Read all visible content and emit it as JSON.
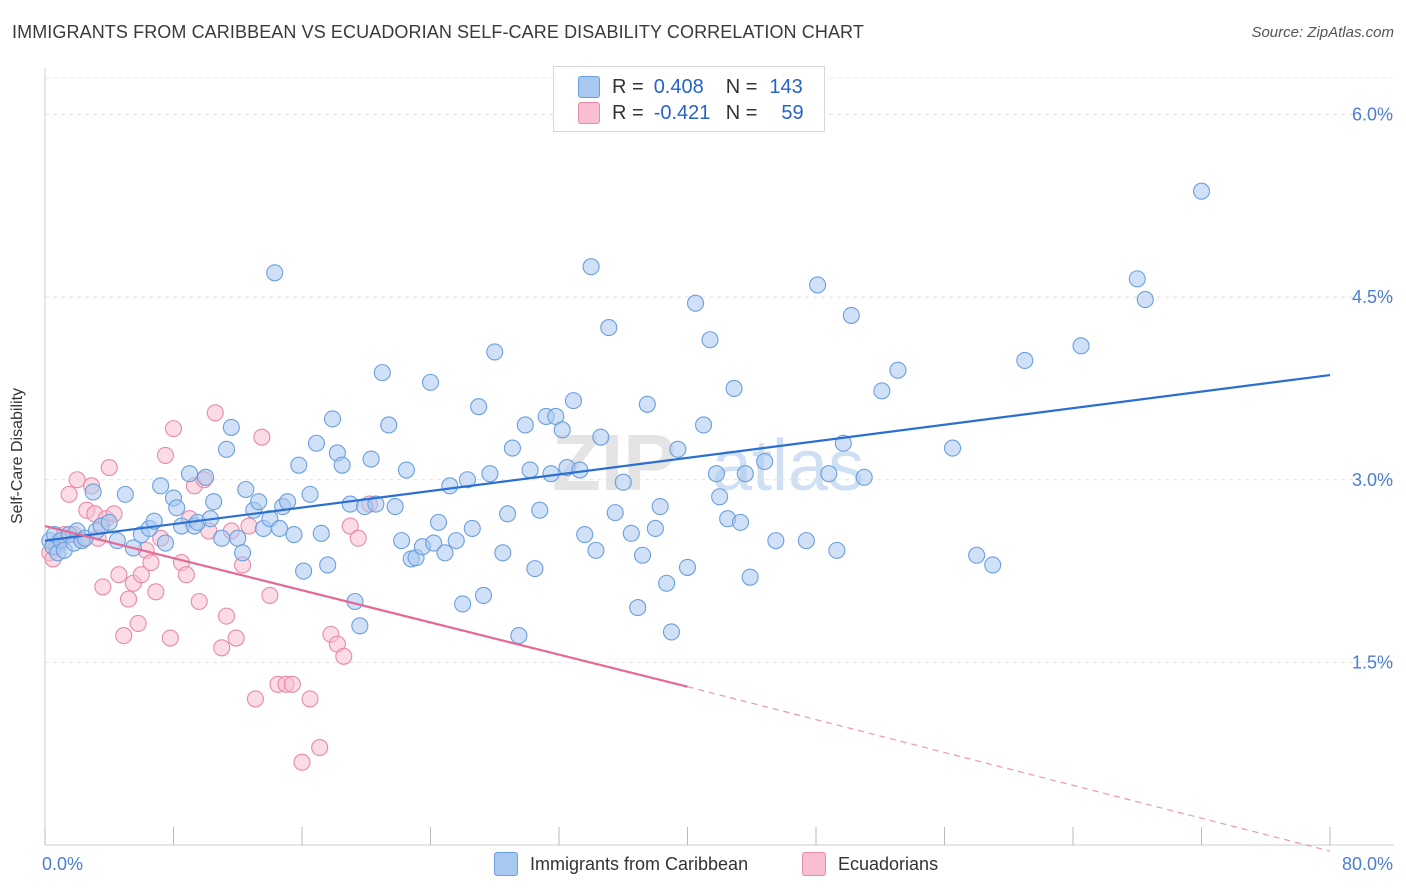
{
  "header": {
    "title": "IMMIGRANTS FROM CARIBBEAN VS ECUADORIAN SELF-CARE DISABILITY CORRELATION CHART",
    "source": "Source: ZipAtlas.com"
  },
  "legend": {
    "series": [
      {
        "r_label": "R =",
        "r_value": "0.408",
        "n_label": "N =",
        "n_value": "143",
        "color": "#a9c8f0",
        "border": "#6a9fde"
      },
      {
        "r_label": "R =",
        "r_value": "-0.421",
        "n_label": "N =",
        "n_value": "59",
        "color": "#f7bfd0",
        "border": "#e88aa8"
      }
    ]
  },
  "bottom_legend": [
    "Immigrants from Caribbean",
    "Ecuadorians"
  ],
  "watermark": {
    "zip": "ZIP",
    "atlas": "atlas"
  },
  "chart_data": {
    "type": "scatter",
    "ylabel": "Self-Care Disability",
    "xlim": [
      0,
      80
    ],
    "ylim": [
      0,
      6.3
    ],
    "x_tick_labels": [
      "0.0%",
      "80.0%"
    ],
    "y_ticks": [
      1.5,
      3.0,
      4.5,
      6.0
    ],
    "y_tick_labels": [
      "1.5%",
      "3.0%",
      "4.5%",
      "6.0%"
    ],
    "colors": {
      "blue": "#2a6fd1",
      "pink": "#e26a96",
      "blue_fill": "#a9c8f0",
      "pink_fill": "#f7bfd0"
    },
    "series": [
      {
        "name": "Immigrants from Caribbean",
        "trend": {
          "x0": 0,
          "y0": 2.5,
          "x1": 80,
          "y1": 3.86
        },
        "points": [
          [
            0.3,
            2.5
          ],
          [
            0.5,
            2.45
          ],
          [
            0.6,
            2.55
          ],
          [
            0.8,
            2.4
          ],
          [
            1.0,
            2.5
          ],
          [
            1.2,
            2.42
          ],
          [
            1.5,
            2.55
          ],
          [
            1.8,
            2.48
          ],
          [
            2.0,
            2.58
          ],
          [
            2.3,
            2.5
          ],
          [
            2.5,
            2.52
          ],
          [
            3.0,
            2.9
          ],
          [
            3.2,
            2.58
          ],
          [
            3.5,
            2.62
          ],
          [
            4.0,
            2.65
          ],
          [
            4.5,
            2.5
          ],
          [
            5.0,
            2.88
          ],
          [
            5.5,
            2.44
          ],
          [
            6.0,
            2.55
          ],
          [
            6.5,
            2.6
          ],
          [
            6.8,
            2.66
          ],
          [
            7.2,
            2.95
          ],
          [
            7.5,
            2.48
          ],
          [
            8.0,
            2.85
          ],
          [
            8.2,
            2.77
          ],
          [
            8.5,
            2.62
          ],
          [
            9.0,
            3.05
          ],
          [
            9.3,
            2.62
          ],
          [
            9.5,
            2.65
          ],
          [
            10.0,
            3.02
          ],
          [
            10.3,
            2.68
          ],
          [
            10.5,
            2.82
          ],
          [
            11.0,
            2.52
          ],
          [
            11.3,
            3.25
          ],
          [
            11.6,
            3.43
          ],
          [
            12.0,
            2.52
          ],
          [
            12.3,
            2.4
          ],
          [
            12.5,
            2.92
          ],
          [
            13.0,
            2.75
          ],
          [
            13.3,
            2.82
          ],
          [
            13.6,
            2.6
          ],
          [
            14.0,
            2.68
          ],
          [
            14.3,
            4.7
          ],
          [
            14.6,
            2.6
          ],
          [
            14.8,
            2.78
          ],
          [
            15.1,
            2.82
          ],
          [
            15.5,
            2.55
          ],
          [
            15.8,
            3.12
          ],
          [
            16.1,
            2.25
          ],
          [
            16.5,
            2.88
          ],
          [
            16.9,
            3.3
          ],
          [
            17.2,
            2.56
          ],
          [
            17.6,
            2.3
          ],
          [
            17.9,
            3.5
          ],
          [
            18.2,
            3.22
          ],
          [
            18.5,
            3.12
          ],
          [
            19.0,
            2.8
          ],
          [
            19.3,
            2.0
          ],
          [
            19.6,
            1.8
          ],
          [
            19.9,
            2.78
          ],
          [
            20.3,
            3.17
          ],
          [
            20.6,
            2.8
          ],
          [
            21.0,
            3.88
          ],
          [
            21.4,
            3.45
          ],
          [
            21.8,
            2.78
          ],
          [
            22.2,
            2.5
          ],
          [
            22.5,
            3.08
          ],
          [
            22.8,
            2.35
          ],
          [
            23.1,
            2.36
          ],
          [
            23.5,
            2.45
          ],
          [
            24.0,
            3.8
          ],
          [
            24.2,
            2.48
          ],
          [
            24.5,
            2.65
          ],
          [
            24.9,
            2.4
          ],
          [
            25.2,
            2.95
          ],
          [
            25.6,
            2.5
          ],
          [
            26.0,
            1.98
          ],
          [
            26.3,
            3.0
          ],
          [
            26.6,
            2.6
          ],
          [
            27.0,
            3.6
          ],
          [
            27.3,
            2.05
          ],
          [
            27.7,
            3.05
          ],
          [
            28.0,
            4.05
          ],
          [
            28.5,
            2.4
          ],
          [
            28.8,
            2.72
          ],
          [
            29.1,
            3.26
          ],
          [
            29.5,
            1.72
          ],
          [
            29.9,
            3.45
          ],
          [
            30.2,
            3.08
          ],
          [
            30.5,
            2.27
          ],
          [
            30.8,
            2.75
          ],
          [
            31.2,
            3.52
          ],
          [
            31.5,
            3.05
          ],
          [
            31.8,
            3.52
          ],
          [
            32.2,
            3.41
          ],
          [
            32.5,
            3.1
          ],
          [
            32.9,
            3.65
          ],
          [
            33.3,
            3.08
          ],
          [
            33.6,
            2.55
          ],
          [
            34.0,
            4.75
          ],
          [
            34.3,
            2.42
          ],
          [
            34.6,
            3.35
          ],
          [
            35.1,
            4.25
          ],
          [
            35.5,
            2.73
          ],
          [
            36.0,
            2.98
          ],
          [
            36.5,
            2.56
          ],
          [
            36.9,
            1.95
          ],
          [
            37.2,
            2.38
          ],
          [
            37.5,
            3.62
          ],
          [
            38.0,
            2.6
          ],
          [
            38.3,
            2.78
          ],
          [
            38.7,
            2.15
          ],
          [
            39.0,
            1.75
          ],
          [
            39.4,
            3.25
          ],
          [
            40.0,
            2.28
          ],
          [
            40.5,
            4.45
          ],
          [
            41.0,
            3.45
          ],
          [
            41.4,
            4.15
          ],
          [
            41.8,
            3.05
          ],
          [
            42.0,
            2.86
          ],
          [
            42.5,
            2.68
          ],
          [
            42.9,
            3.75
          ],
          [
            43.3,
            2.65
          ],
          [
            43.6,
            3.05
          ],
          [
            43.9,
            2.2
          ],
          [
            44.8,
            3.15
          ],
          [
            45.5,
            2.5
          ],
          [
            47.4,
            2.5
          ],
          [
            48.1,
            4.6
          ],
          [
            48.8,
            3.05
          ],
          [
            49.3,
            2.42
          ],
          [
            49.7,
            3.3
          ],
          [
            50.2,
            4.35
          ],
          [
            51.0,
            3.02
          ],
          [
            52.1,
            3.73
          ],
          [
            53.1,
            3.9
          ],
          [
            56.5,
            3.26
          ],
          [
            58.0,
            2.38
          ],
          [
            59.0,
            2.3
          ],
          [
            61.0,
            3.98
          ],
          [
            64.5,
            4.1
          ],
          [
            68.0,
            4.65
          ],
          [
            68.5,
            4.48
          ],
          [
            72.0,
            5.37
          ]
        ]
      },
      {
        "name": "Ecuadorians",
        "trend": {
          "x0": 0,
          "y0": 2.62,
          "x1": 40,
          "y1": 1.3
        },
        "trend_ext": {
          "x0": 40,
          "y0": 1.3,
          "x1": 80,
          "y1": -0.05
        },
        "points": [
          [
            0.3,
            2.4
          ],
          [
            0.5,
            2.35
          ],
          [
            0.7,
            2.45
          ],
          [
            0.9,
            2.5
          ],
          [
            1.2,
            2.55
          ],
          [
            1.5,
            2.88
          ],
          [
            1.8,
            2.55
          ],
          [
            2.0,
            3.0
          ],
          [
            2.3,
            2.5
          ],
          [
            2.6,
            2.75
          ],
          [
            2.9,
            2.95
          ],
          [
            3.1,
            2.72
          ],
          [
            3.3,
            2.52
          ],
          [
            3.6,
            2.12
          ],
          [
            3.8,
            2.68
          ],
          [
            4.0,
            3.1
          ],
          [
            4.3,
            2.72
          ],
          [
            4.6,
            2.22
          ],
          [
            4.9,
            1.72
          ],
          [
            5.2,
            2.02
          ],
          [
            5.5,
            2.15
          ],
          [
            5.8,
            1.82
          ],
          [
            6.0,
            2.22
          ],
          [
            6.3,
            2.42
          ],
          [
            6.6,
            2.32
          ],
          [
            6.9,
            2.08
          ],
          [
            7.2,
            2.52
          ],
          [
            7.5,
            3.2
          ],
          [
            7.8,
            1.7
          ],
          [
            8.0,
            3.42
          ],
          [
            8.5,
            2.32
          ],
          [
            8.8,
            2.22
          ],
          [
            9.0,
            2.68
          ],
          [
            9.3,
            2.95
          ],
          [
            9.6,
            2.0
          ],
          [
            9.9,
            3.0
          ],
          [
            10.2,
            2.58
          ],
          [
            10.6,
            3.55
          ],
          [
            11.0,
            1.62
          ],
          [
            11.3,
            1.88
          ],
          [
            11.6,
            2.58
          ],
          [
            11.9,
            1.7
          ],
          [
            12.3,
            2.3
          ],
          [
            12.7,
            2.62
          ],
          [
            13.1,
            1.2
          ],
          [
            13.5,
            3.35
          ],
          [
            14.0,
            2.05
          ],
          [
            14.5,
            1.32
          ],
          [
            15.0,
            1.32
          ],
          [
            15.4,
            1.32
          ],
          [
            16.0,
            0.68
          ],
          [
            16.5,
            1.2
          ],
          [
            17.1,
            0.8
          ],
          [
            17.8,
            1.73
          ],
          [
            18.2,
            1.65
          ],
          [
            18.6,
            1.55
          ],
          [
            19.0,
            2.62
          ],
          [
            19.5,
            2.52
          ],
          [
            20.2,
            2.8
          ]
        ]
      }
    ]
  }
}
